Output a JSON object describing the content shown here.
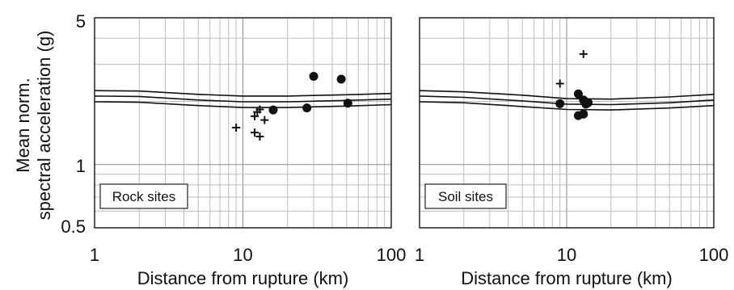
{
  "ylabel_line1": "Mean norm.",
  "ylabel_line2": "spectral acceleration (g)",
  "y_ticks": [
    "5",
    "1",
    "0.5"
  ],
  "chart_data": [
    {
      "type": "scatter",
      "panel_label": "Rock sites",
      "xlabel": "Distance from rupture (km)",
      "x_scale": "log",
      "y_scale": "log",
      "xlim": [
        1,
        100
      ],
      "ylim": [
        0.5,
        5
      ],
      "x_ticks": [
        "1",
        "10",
        "100"
      ],
      "grid": true,
      "curves": [
        {
          "x": [
            1,
            2,
            5,
            10,
            20,
            50,
            100
          ],
          "y": [
            2.25,
            2.24,
            2.16,
            2.12,
            2.12,
            2.15,
            2.18
          ]
        },
        {
          "x": [
            1,
            2,
            5,
            10,
            20,
            50,
            100
          ],
          "y": [
            2.12,
            2.11,
            2.03,
            1.99,
            1.99,
            2.02,
            2.05
          ]
        },
        {
          "x": [
            1,
            2,
            5,
            10,
            20,
            50,
            100
          ],
          "y": [
            1.99,
            1.98,
            1.91,
            1.87,
            1.87,
            1.9,
            1.93
          ]
        }
      ],
      "points_plus": [
        {
          "x": 9.0,
          "y": 1.5
        },
        {
          "x": 12.0,
          "y": 1.7
        },
        {
          "x": 12.5,
          "y": 1.78
        },
        {
          "x": 13.0,
          "y": 1.83
        },
        {
          "x": 14.0,
          "y": 1.63
        },
        {
          "x": 12.0,
          "y": 1.42
        },
        {
          "x": 13.0,
          "y": 1.36
        }
      ],
      "points_circle": [
        {
          "x": 16.0,
          "y": 1.82
        },
        {
          "x": 27.0,
          "y": 1.86
        },
        {
          "x": 30.0,
          "y": 2.63
        },
        {
          "x": 46.0,
          "y": 2.55
        },
        {
          "x": 51.0,
          "y": 1.96
        }
      ]
    },
    {
      "type": "scatter",
      "panel_label": "Soil sites",
      "xlabel": "Distance from rupture (km)",
      "x_scale": "log",
      "y_scale": "log",
      "xlim": [
        1,
        100
      ],
      "ylim": [
        0.5,
        5
      ],
      "x_ticks": [
        "1",
        "10",
        "100"
      ],
      "grid": true,
      "curves": [
        {
          "x": [
            1,
            2,
            5,
            10,
            20,
            50,
            100
          ],
          "y": [
            2.25,
            2.22,
            2.14,
            2.06,
            2.05,
            2.1,
            2.16
          ]
        },
        {
          "x": [
            1,
            2,
            5,
            10,
            20,
            50,
            100
          ],
          "y": [
            2.12,
            2.09,
            2.01,
            1.94,
            1.93,
            1.97,
            2.03
          ]
        },
        {
          "x": [
            1,
            2,
            5,
            10,
            20,
            50,
            100
          ],
          "y": [
            1.99,
            1.97,
            1.89,
            1.83,
            1.82,
            1.86,
            1.91
          ]
        }
      ],
      "points_plus": [
        {
          "x": 9.0,
          "y": 2.43
        },
        {
          "x": 13.0,
          "y": 3.36
        }
      ],
      "points_circle": [
        {
          "x": 9.0,
          "y": 1.95
        },
        {
          "x": 12.0,
          "y": 2.17
        },
        {
          "x": 13.0,
          "y": 2.03
        },
        {
          "x": 13.5,
          "y": 1.94
        },
        {
          "x": 14.0,
          "y": 1.97
        },
        {
          "x": 12.0,
          "y": 1.71
        },
        {
          "x": 13.0,
          "y": 1.74
        }
      ]
    }
  ]
}
